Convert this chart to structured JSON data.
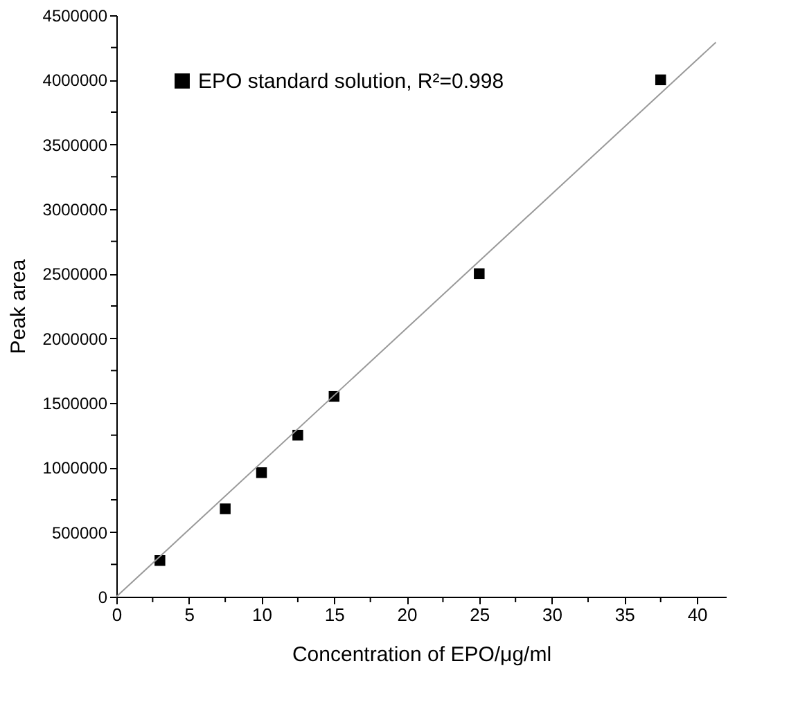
{
  "chart_data": {
    "type": "scatter",
    "xlabel": "Concentration of EPO/μg/ml",
    "ylabel": "Peak area",
    "series": [
      {
        "name": "EPO standard solution, R²=0.998",
        "type": "scatter",
        "color": "#000000",
        "marker": "square",
        "x": [
          3,
          7.5,
          10,
          12.5,
          15,
          25,
          37.5
        ],
        "values": [
          280000,
          680000,
          960000,
          1250000,
          1550000,
          2500000,
          4000000
        ]
      },
      {
        "type": "line",
        "color": "#999999",
        "line_style": "solid",
        "x": [
          0,
          41.3
        ],
        "values": [
          0,
          4290000
        ]
      }
    ],
    "xlim": [
      0,
      42
    ],
    "ylim": [
      0,
      4500000
    ],
    "xticks": [
      0,
      {
        "value": 2.5,
        "label": null
      },
      5,
      {
        "value": 7.5,
        "label": null
      },
      10,
      {
        "value": 12.5,
        "label": null
      },
      15,
      {
        "value": 17.5,
        "label": null
      },
      20,
      {
        "value": 22.5,
        "label": null
      },
      25,
      {
        "value": 27.5,
        "label": null
      },
      30,
      {
        "value": 32.5,
        "label": null
      },
      35,
      {
        "value": 37.5,
        "label": null
      },
      40
    ],
    "yticks": [
      0,
      {
        "value": 250000,
        "label": null
      },
      500000,
      {
        "value": 750000,
        "label": null
      },
      1000000,
      {
        "value": 1250000,
        "label": null
      },
      1500000,
      {
        "value": 1750000,
        "label": null
      },
      2000000,
      {
        "value": 2250000,
        "label": null
      },
      2500000,
      {
        "value": 2750000,
        "label": null
      },
      3000000,
      {
        "value": 3250000,
        "label": null
      },
      3500000,
      {
        "value": 3750000,
        "label": null
      },
      4000000,
      {
        "value": 4250000,
        "label": null
      },
      4500000
    ],
    "grid": false,
    "legend": "top left"
  }
}
